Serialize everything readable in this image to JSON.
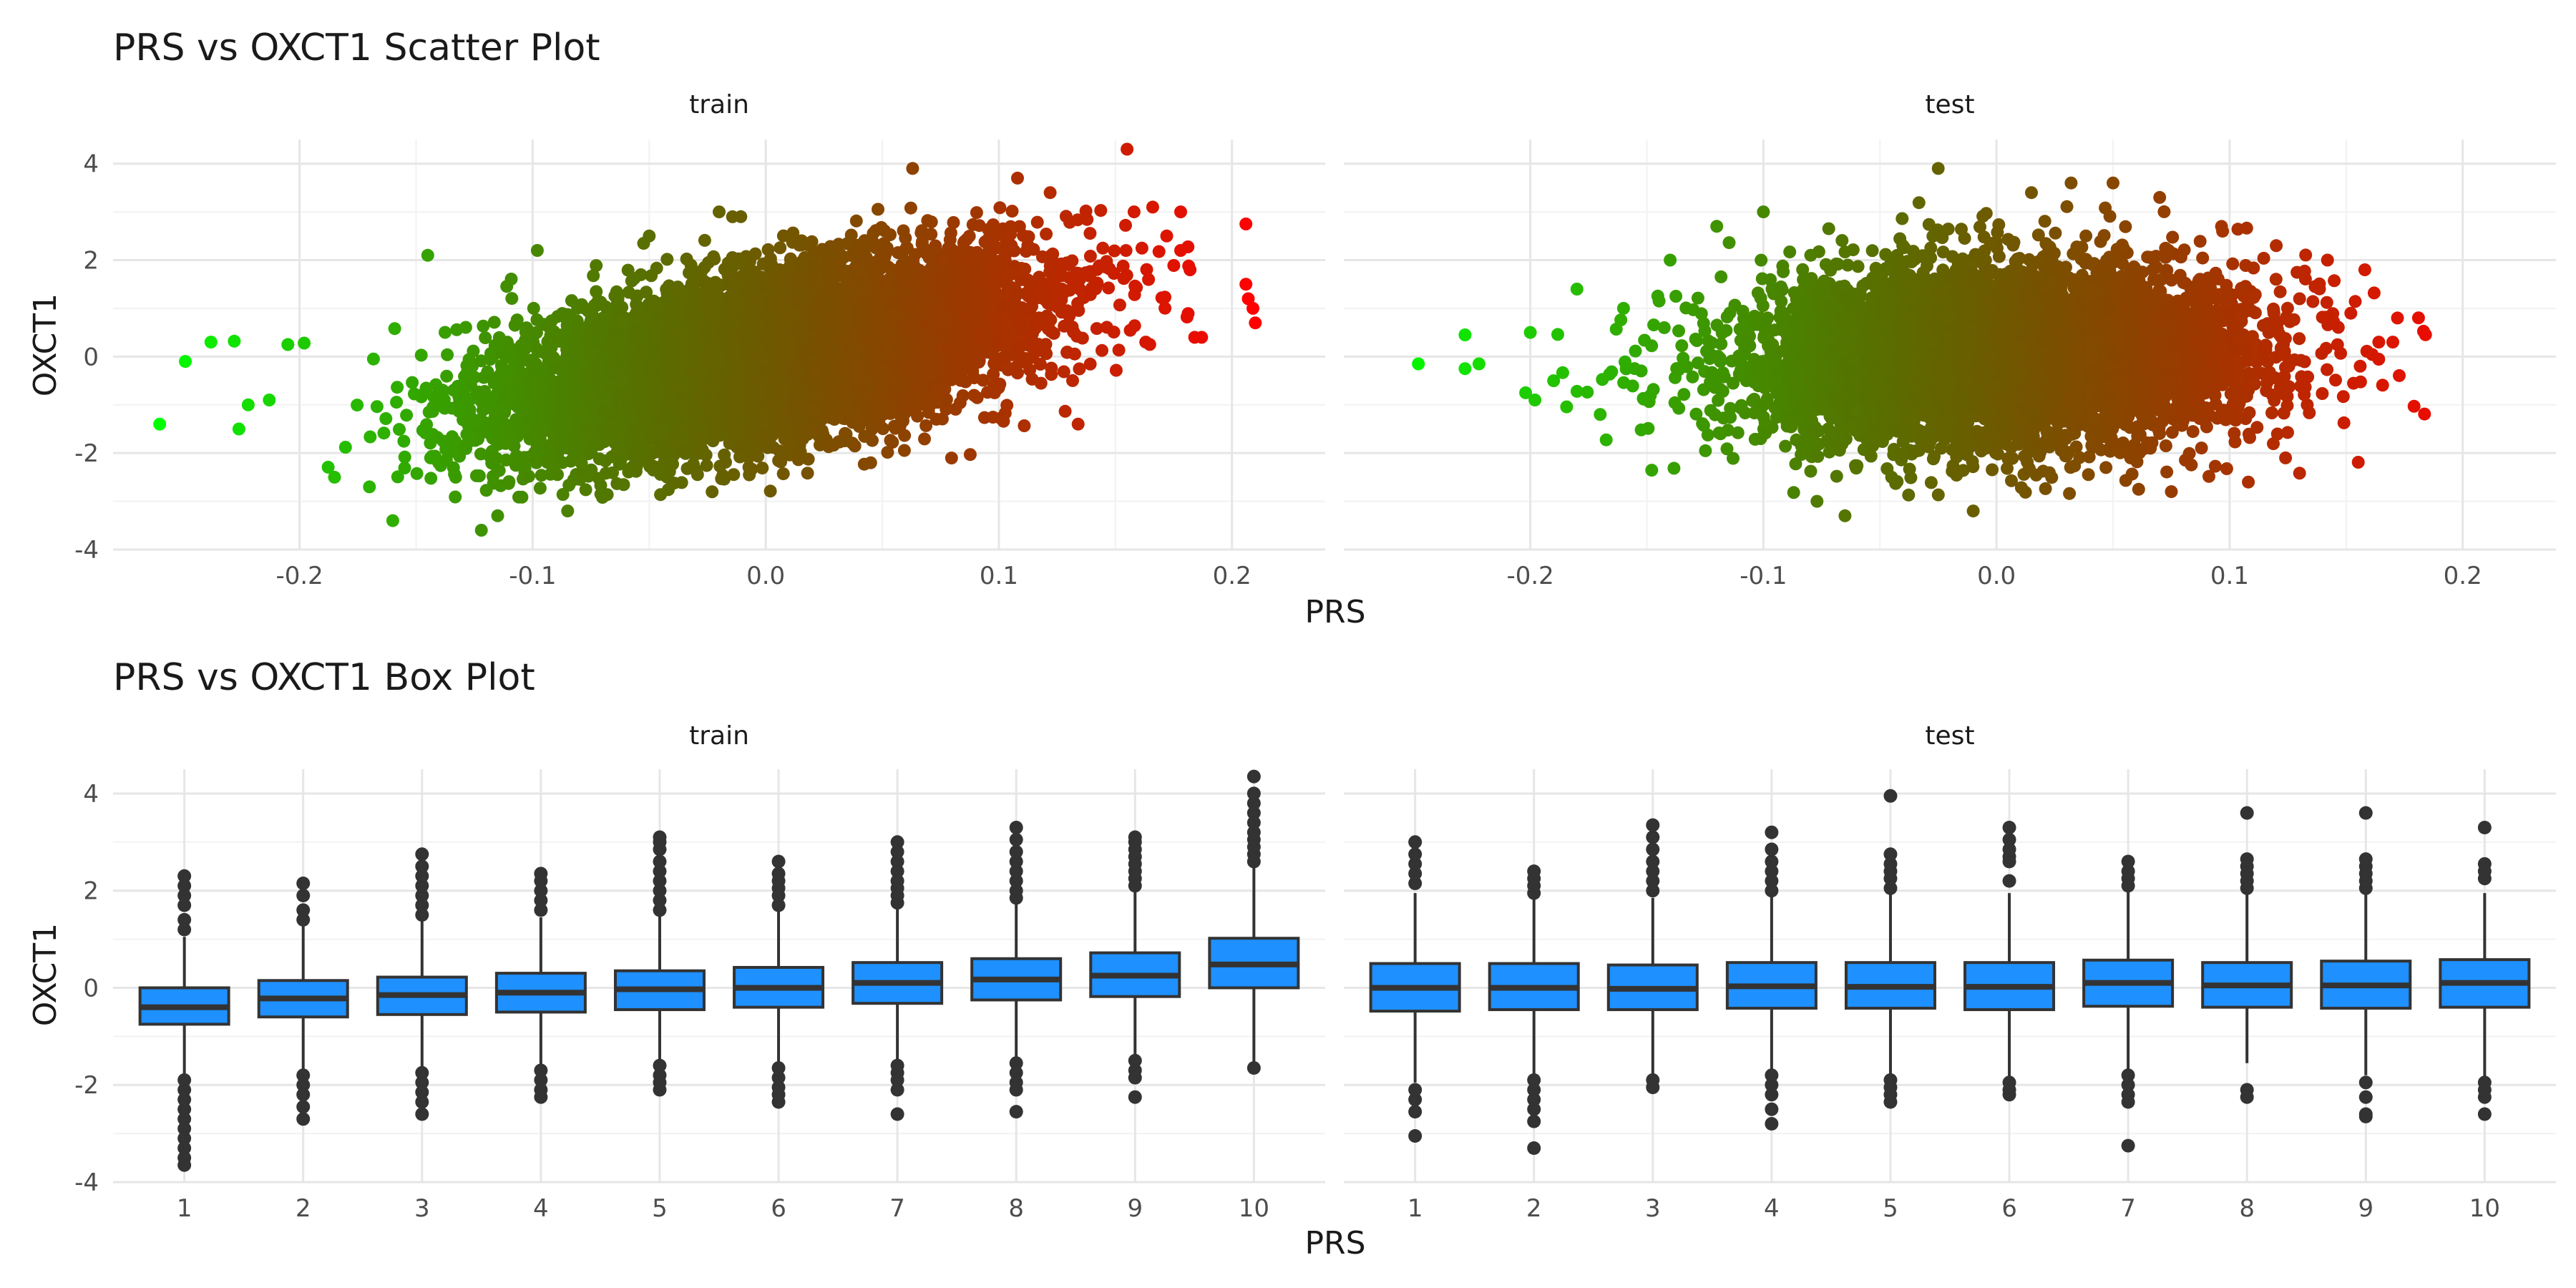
{
  "chart_data": [
    {
      "type": "scatter",
      "title": "PRS vs OXCT1 Scatter Plot",
      "xlabel": "PRS",
      "ylabel": "OXCT1",
      "xlim": [
        -0.28,
        0.24
      ],
      "ylim": [
        -4.0,
        4.5
      ],
      "x_ticks": [
        "-0.2",
        "-0.1",
        "0.0",
        "0.1",
        "0.2"
      ],
      "y_ticks": [
        "-4",
        "-2",
        "0",
        "2",
        "4"
      ],
      "x_tick_values": [
        -0.2,
        -0.1,
        0.0,
        0.1,
        0.2
      ],
      "y_tick_values": [
        -4,
        -2,
        0,
        2,
        4
      ],
      "grid": true,
      "color_scale": {
        "low": "#00ff00",
        "high": "#ff0000",
        "mapped_to": "PRS"
      },
      "panels": [
        {
          "label": "train",
          "trend": {
            "slope": 9.0,
            "intercept": 0.0,
            "resid_sd": 0.82
          },
          "cloud": {
            "x_center": 0.0,
            "x_sd": 0.055,
            "n": 9000,
            "seed": 17
          },
          "points": [
            [
              -0.26,
              -1.4
            ],
            [
              -0.249,
              -0.1
            ],
            [
              -0.238,
              0.3
            ],
            [
              -0.228,
              0.32
            ],
            [
              -0.226,
              -1.5
            ],
            [
              -0.222,
              -1.0
            ],
            [
              -0.213,
              -0.9
            ],
            [
              -0.205,
              0.25
            ],
            [
              -0.198,
              0.28
            ],
            [
              -0.185,
              -2.5
            ],
            [
              -0.17,
              -2.7
            ],
            [
              -0.16,
              -3.4
            ],
            [
              -0.145,
              2.1
            ],
            [
              -0.122,
              -3.6
            ],
            [
              -0.115,
              -3.3
            ],
            [
              -0.098,
              2.2
            ],
            [
              -0.085,
              -3.2
            ],
            [
              -0.05,
              2.5
            ],
            [
              -0.02,
              3.0
            ],
            [
              0.045,
              -2.2
            ],
            [
              0.063,
              3.9
            ],
            [
              0.108,
              3.7
            ],
            [
              0.122,
              3.4
            ],
            [
              0.134,
              -1.4
            ],
            [
              0.155,
              4.3
            ],
            [
              0.158,
              3.0
            ],
            [
              0.166,
              3.1
            ],
            [
              0.172,
              2.5
            ],
            [
              0.178,
              3.0
            ],
            [
              0.182,
              1.8
            ],
            [
              0.184,
              0.4
            ],
            [
              0.178,
              2.2
            ],
            [
              0.163,
              0.3
            ],
            [
              0.206,
              2.75
            ],
            [
              0.206,
              1.5
            ],
            [
              0.207,
              1.2
            ],
            [
              0.209,
              1.0
            ],
            [
              0.21,
              0.7
            ],
            [
              0.187,
              0.4
            ]
          ]
        },
        {
          "label": "test",
          "trend": {
            "slope": 0.5,
            "intercept": 0.0,
            "resid_sd": 0.95
          },
          "cloud": {
            "x_center": 0.0,
            "x_sd": 0.055,
            "n": 5500,
            "seed": 29
          },
          "points": [
            [
              -0.248,
              -0.15
            ],
            [
              -0.228,
              0.45
            ],
            [
              -0.228,
              -0.25
            ],
            [
              -0.222,
              -0.15
            ],
            [
              -0.202,
              -0.75
            ],
            [
              -0.2,
              0.5
            ],
            [
              -0.198,
              -0.9
            ],
            [
              -0.19,
              -0.5
            ],
            [
              -0.18,
              1.4
            ],
            [
              -0.17,
              -1.2
            ],
            [
              -0.16,
              1.0
            ],
            [
              -0.14,
              2.0
            ],
            [
              -0.12,
              2.7
            ],
            [
              -0.1,
              3.0
            ],
            [
              -0.077,
              -3.0
            ],
            [
              -0.065,
              -3.3
            ],
            [
              -0.045,
              -2.5
            ],
            [
              -0.025,
              3.9
            ],
            [
              -0.01,
              -3.2
            ],
            [
              0.015,
              3.4
            ],
            [
              0.032,
              3.6
            ],
            [
              0.05,
              3.6
            ],
            [
              0.07,
              3.3
            ],
            [
              0.075,
              -2.8
            ],
            [
              0.097,
              2.6
            ],
            [
              0.12,
              2.3
            ],
            [
              0.124,
              -2.1
            ],
            [
              0.13,
              1.2
            ],
            [
              0.142,
              2.0
            ],
            [
              0.152,
              0.9
            ],
            [
              0.156,
              -0.2
            ],
            [
              0.158,
              1.8
            ],
            [
              0.164,
              0.3
            ],
            [
              0.172,
              0.8
            ],
            [
              0.17,
              0.3
            ]
          ]
        }
      ]
    },
    {
      "type": "box",
      "title": "PRS vs OXCT1 Box Plot",
      "xlabel": "PRS",
      "ylabel": "OXCT1",
      "categories": [
        "1",
        "2",
        "3",
        "4",
        "5",
        "6",
        "7",
        "8",
        "9",
        "10"
      ],
      "ylim": [
        -4.0,
        4.5
      ],
      "y_ticks": [
        "-4",
        "-2",
        "0",
        "2",
        "4"
      ],
      "y_tick_values": [
        -4,
        -2,
        0,
        2,
        4
      ],
      "grid": true,
      "box_color": "#1e90ff",
      "panels": [
        {
          "label": "train",
          "boxes": [
            {
              "q1": -0.75,
              "median": -0.4,
              "q3": 0.0,
              "lo": -1.85,
              "hi": 1.05,
              "out_lo": [
                -1.9,
                -2.1,
                -2.3,
                -2.5,
                -2.7,
                -2.9,
                -3.1,
                -3.3,
                -3.5,
                -3.65
              ],
              "out_hi": [
                1.2,
                1.4,
                1.7,
                1.9,
                2.1,
                2.3
              ]
            },
            {
              "q1": -0.6,
              "median": -0.22,
              "q3": 0.15,
              "lo": -1.75,
              "hi": 1.3,
              "out_lo": [
                -1.8,
                -2.0,
                -2.2,
                -2.45,
                -2.7
              ],
              "out_hi": [
                1.4,
                1.6,
                1.9,
                2.15
              ]
            },
            {
              "q1": -0.55,
              "median": -0.15,
              "q3": 0.22,
              "lo": -1.7,
              "hi": 1.4,
              "out_lo": [
                -1.75,
                -1.95,
                -2.15,
                -2.35,
                -2.6
              ],
              "out_hi": [
                1.5,
                1.7,
                1.9,
                2.1,
                2.3,
                2.5,
                2.75
              ]
            },
            {
              "q1": -0.5,
              "median": -0.1,
              "q3": 0.3,
              "lo": -1.6,
              "hi": 1.45,
              "out_lo": [
                -1.7,
                -1.9,
                -2.1,
                -2.25
              ],
              "out_hi": [
                1.6,
                1.8,
                2.0,
                2.2,
                2.35
              ]
            },
            {
              "q1": -0.45,
              "median": -0.03,
              "q3": 0.35,
              "lo": -1.55,
              "hi": 1.5,
              "out_lo": [
                -1.6,
                -1.8,
                -1.95,
                -2.1
              ],
              "out_hi": [
                1.6,
                1.8,
                2.0,
                2.2,
                2.4,
                2.6,
                2.85,
                3.0,
                3.1
              ]
            },
            {
              "q1": -0.4,
              "median": 0.0,
              "q3": 0.42,
              "lo": -1.55,
              "hi": 1.6,
              "out_lo": [
                -1.65,
                -1.85,
                -2.05,
                -2.2,
                -2.35
              ],
              "out_hi": [
                1.7,
                1.9,
                2.05,
                2.2,
                2.35,
                2.6
              ]
            },
            {
              "q1": -0.32,
              "median": 0.1,
              "q3": 0.52,
              "lo": -1.5,
              "hi": 1.7,
              "out_lo": [
                -1.6,
                -1.75,
                -1.9,
                -2.1,
                -2.6
              ],
              "out_hi": [
                1.75,
                1.9,
                2.05,
                2.2,
                2.4,
                2.6,
                2.8,
                3.0
              ]
            },
            {
              "q1": -0.25,
              "median": 0.17,
              "q3": 0.6,
              "lo": -1.45,
              "hi": 1.8,
              "out_lo": [
                -1.55,
                -1.75,
                -1.95,
                -2.1,
                -2.55
              ],
              "out_hi": [
                1.85,
                2.0,
                2.2,
                2.4,
                2.6,
                2.8,
                3.05,
                3.3
              ]
            },
            {
              "q1": -0.18,
              "median": 0.25,
              "q3": 0.72,
              "lo": -1.4,
              "hi": 2.0,
              "out_lo": [
                -1.5,
                -1.7,
                -1.85,
                -2.25
              ],
              "out_hi": [
                2.1,
                2.25,
                2.4,
                2.55,
                2.7,
                2.85,
                3.0,
                3.1
              ]
            },
            {
              "q1": 0.0,
              "median": 0.48,
              "q3": 1.02,
              "lo": -1.6,
              "hi": 2.55,
              "out_lo": [
                -1.65
              ],
              "out_hi": [
                2.6,
                2.75,
                2.9,
                3.05,
                3.2,
                3.4,
                3.6,
                3.8,
                4.0,
                4.35
              ]
            }
          ]
        },
        {
          "label": "test",
          "boxes": [
            {
              "q1": -0.48,
              "median": 0.0,
              "q3": 0.5,
              "lo": -1.95,
              "hi": 1.95,
              "out_lo": [
                -2.1,
                -2.3,
                -2.55,
                -3.05
              ],
              "out_hi": [
                2.15,
                2.35,
                2.55,
                2.75,
                3.0
              ]
            },
            {
              "q1": -0.45,
              "median": 0.0,
              "q3": 0.5,
              "lo": -1.85,
              "hi": 1.85,
              "out_lo": [
                -1.9,
                -2.1,
                -2.3,
                -2.5,
                -2.75,
                -3.3
              ],
              "out_hi": [
                1.95,
                2.1,
                2.25,
                2.4
              ]
            },
            {
              "q1": -0.45,
              "median": -0.02,
              "q3": 0.47,
              "lo": -1.85,
              "hi": 1.85,
              "out_lo": [
                -1.9,
                -2.05
              ],
              "out_hi": [
                2.0,
                2.2,
                2.4,
                2.6,
                2.85,
                3.1,
                3.35
              ]
            },
            {
              "q1": -0.42,
              "median": 0.03,
              "q3": 0.52,
              "lo": -1.75,
              "hi": 1.9,
              "out_lo": [
                -1.8,
                -2.0,
                -2.2,
                -2.5,
                -2.8
              ],
              "out_hi": [
                2.0,
                2.2,
                2.4,
                2.6,
                2.85,
                3.2
              ]
            },
            {
              "q1": -0.42,
              "median": 0.02,
              "q3": 0.52,
              "lo": -1.8,
              "hi": 1.95,
              "out_lo": [
                -1.9,
                -2.05,
                -2.2,
                -2.35
              ],
              "out_hi": [
                2.05,
                2.25,
                2.4,
                2.55,
                2.75,
                3.95
              ]
            },
            {
              "q1": -0.45,
              "median": 0.02,
              "q3": 0.52,
              "lo": -1.85,
              "hi": 1.95,
              "out_lo": [
                -1.95,
                -2.1,
                -2.2
              ],
              "out_hi": [
                2.2,
                2.6,
                2.7,
                2.85,
                3.05,
                3.3
              ]
            },
            {
              "q1": -0.38,
              "median": 0.1,
              "q3": 0.57,
              "lo": -1.75,
              "hi": 2.05,
              "out_lo": [
                -1.8,
                -2.0,
                -2.2,
                -2.35,
                -3.25
              ],
              "out_hi": [
                2.1,
                2.25,
                2.4,
                2.6
              ]
            },
            {
              "q1": -0.4,
              "median": 0.05,
              "q3": 0.52,
              "lo": -1.55,
              "hi": 1.95,
              "out_lo": [
                -2.1,
                -2.25
              ],
              "out_hi": [
                2.05,
                2.2,
                2.35,
                2.5,
                2.65,
                3.6
              ]
            },
            {
              "q1": -0.42,
              "median": 0.05,
              "q3": 0.55,
              "lo": -1.8,
              "hi": 1.95,
              "out_lo": [
                -1.95,
                -2.25,
                -2.6,
                -2.65
              ],
              "out_hi": [
                2.05,
                2.2,
                2.35,
                2.5,
                2.65,
                3.6
              ]
            },
            {
              "q1": -0.4,
              "median": 0.1,
              "q3": 0.58,
              "lo": -1.85,
              "hi": 1.95,
              "out_lo": [
                -1.95,
                -2.1,
                -2.25,
                -2.6
              ],
              "out_hi": [
                2.25,
                2.4,
                2.55,
                3.3
              ]
            }
          ]
        }
      ]
    }
  ]
}
